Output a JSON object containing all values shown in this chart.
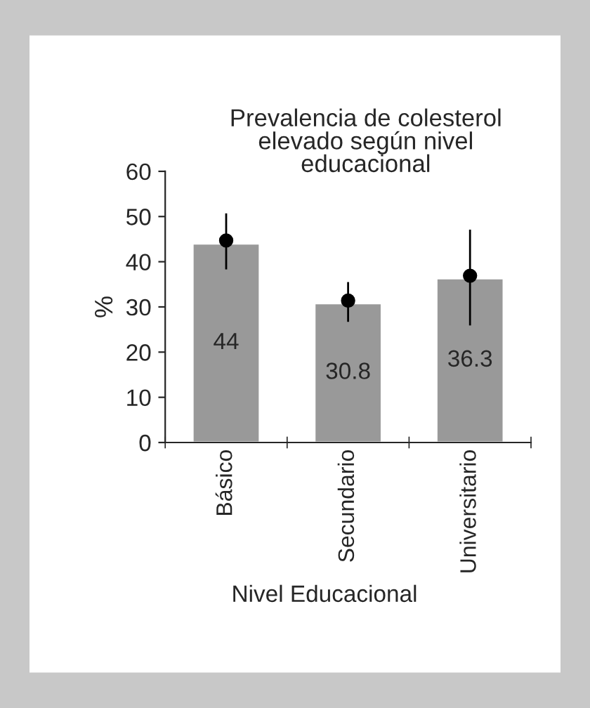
{
  "chart_data": {
    "type": "bar",
    "title": "Prevalencia de colesterol\nelevado según nivel\neducacional",
    "xlabel": "Nivel Educacional",
    "ylabel": "%",
    "categories": [
      "Básico",
      "Secundario",
      "Universitario"
    ],
    "series": [
      {
        "color": "#999999",
        "values": [
          44,
          30.8,
          36.3
        ],
        "value_labels": [
          "44",
          "30.8",
          "36.3"
        ]
      },
      {
        "type": "scatter",
        "color": "#000000",
        "x": [
          "Básico",
          "Secundario",
          "Universitario"
        ],
        "values": [
          44.7,
          31.4,
          36.9
        ],
        "errors": [
          [
            38.3,
            50.7
          ],
          [
            26.7,
            35.5
          ],
          [
            25.9,
            47.1
          ]
        ]
      }
    ],
    "ylim": [
      0,
      60
    ],
    "yticks": [
      0,
      10,
      20,
      30,
      40,
      50,
      60
    ],
    "grid": false,
    "legend": false,
    "marker": "circle"
  }
}
